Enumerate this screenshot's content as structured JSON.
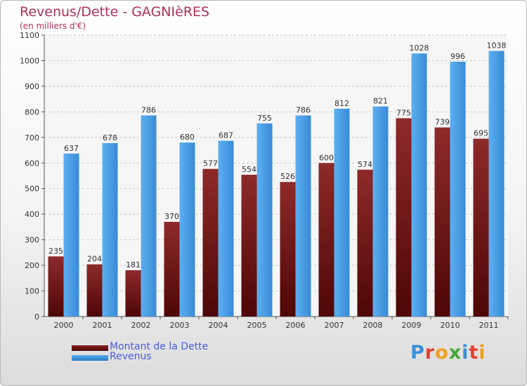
{
  "title": "Revenus/Dette - GAGNIèRES",
  "subtitle": "(en milliers d'€)",
  "logo": {
    "text": "Proxiti",
    "letter_colors": [
      "#3a8fd8",
      "#e8402c",
      "#f0a020",
      "#48a838",
      "#3a8fd8",
      "#e8402c",
      "#f0a020"
    ]
  },
  "chart_data": {
    "type": "bar",
    "categories": [
      "2000",
      "2001",
      "2002",
      "2003",
      "2004",
      "2005",
      "2006",
      "2007",
      "2008",
      "2009",
      "2010",
      "2011"
    ],
    "series": [
      {
        "name": "Montant de la Dette",
        "color": "#7a1a1a",
        "values": [
          235,
          204,
          181,
          370,
          577,
          554,
          526,
          600,
          574,
          775,
          739,
          695
        ]
      },
      {
        "name": "Revenus",
        "color": "#4a9ee0",
        "values": [
          637,
          678,
          786,
          680,
          687,
          755,
          786,
          812,
          821,
          1028,
          996,
          1038
        ]
      }
    ],
    "yticks": [
      0,
      100,
      200,
      300,
      400,
      500,
      600,
      700,
      800,
      900,
      1000,
      1100
    ],
    "ylim": [
      0,
      1100
    ],
    "grid": true,
    "legend": "bottom-left"
  }
}
